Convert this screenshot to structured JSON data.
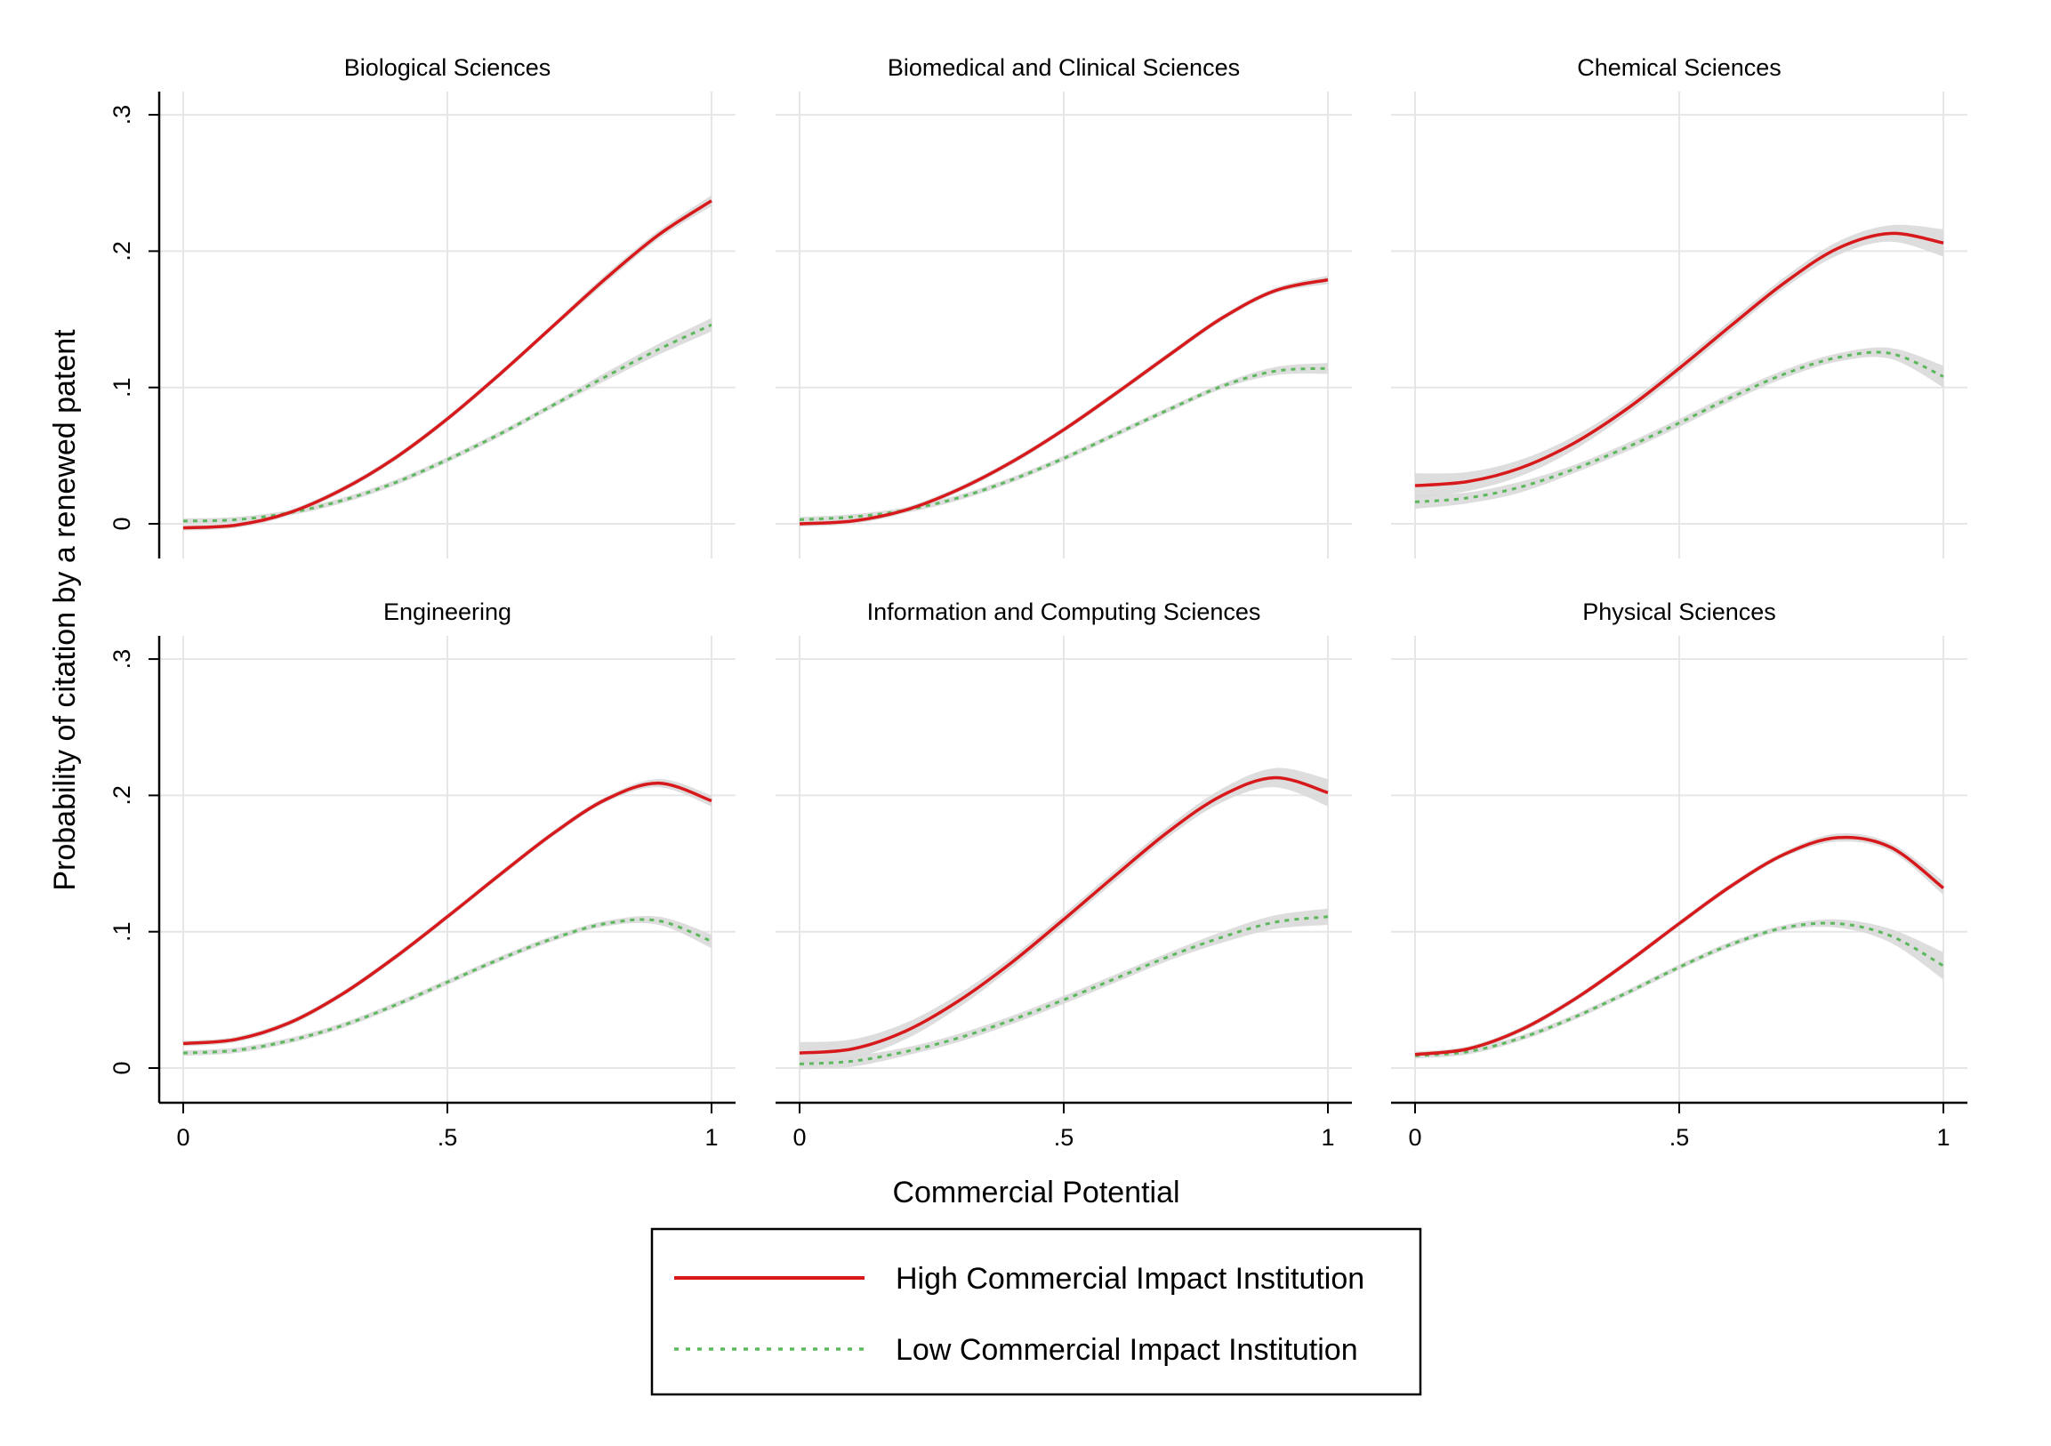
{
  "chart_data": {
    "type": "line",
    "x_axis_label": "Commercial Potential",
    "y_axis_label": "Probability of citation by a renewed patent",
    "xlim": [
      0,
      1
    ],
    "ylim": [
      -0.025,
      0.32
    ],
    "x_ticks": [
      {
        "value": 0,
        "label": "0"
      },
      {
        "value": 0.5,
        "label": ".5"
      },
      {
        "value": 1,
        "label": "1"
      }
    ],
    "y_ticks": [
      {
        "value": 0,
        "label": "0"
      },
      {
        "value": 0.1,
        "label": ".1"
      },
      {
        "value": 0.2,
        "label": ".2"
      },
      {
        "value": 0.3,
        "label": ".3"
      }
    ],
    "grid": true,
    "confidence_band_color": "#d9d9d9",
    "series_styles": [
      {
        "name": "High Commercial Impact Institution",
        "color": "#d7191c",
        "dash": "solid"
      },
      {
        "name": "Low Commercial Impact Institution",
        "color": "#5cb85c",
        "dash": "dotted"
      }
    ],
    "legend": {
      "position": "bottom-center",
      "entries": [
        "High Commercial Impact Institution",
        "Low Commercial Impact Institution"
      ]
    },
    "x": [
      0,
      0.1,
      0.2,
      0.3,
      0.4,
      0.5,
      0.6,
      0.7,
      0.8,
      0.9,
      1.0
    ],
    "panels": [
      {
        "title": "Biological Sciences",
        "series": [
          {
            "name": "High Commercial Impact Institution",
            "values": [
              -0.003,
              -0.001,
              0.008,
              0.025,
              0.048,
              0.077,
              0.11,
              0.145,
              0.18,
              0.212,
              0.237
            ],
            "ci": [
              0.002,
              0.002,
              0.002,
              0.002,
              0.002,
              0.002,
              0.002,
              0.002,
              0.003,
              0.003,
              0.004
            ]
          },
          {
            "name": "Low Commercial Impact Institution",
            "values": [
              0.002,
              0.003,
              0.008,
              0.017,
              0.03,
              0.047,
              0.066,
              0.087,
              0.108,
              0.128,
              0.146
            ],
            "ci": [
              0.002,
              0.002,
              0.002,
              0.002,
              0.002,
              0.002,
              0.002,
              0.002,
              0.003,
              0.004,
              0.005
            ]
          }
        ]
      },
      {
        "title": "Biomedical and Clinical Sciences",
        "series": [
          {
            "name": "High Commercial Impact Institution",
            "values": [
              0.0,
              0.002,
              0.01,
              0.025,
              0.045,
              0.069,
              0.096,
              0.124,
              0.151,
              0.171,
              0.179
            ],
            "ci": [
              0.002,
              0.002,
              0.002,
              0.002,
              0.002,
              0.002,
              0.002,
              0.002,
              0.002,
              0.002,
              0.003
            ]
          },
          {
            "name": "Low Commercial Impact Institution",
            "values": [
              0.003,
              0.005,
              0.01,
              0.019,
              0.032,
              0.048,
              0.066,
              0.084,
              0.101,
              0.112,
              0.114
            ],
            "ci": [
              0.002,
              0.002,
              0.002,
              0.002,
              0.002,
              0.002,
              0.002,
              0.002,
              0.002,
              0.003,
              0.004
            ]
          }
        ]
      },
      {
        "title": "Chemical Sciences",
        "series": [
          {
            "name": "High Commercial Impact Institution",
            "values": [
              0.028,
              0.031,
              0.041,
              0.059,
              0.084,
              0.114,
              0.146,
              0.177,
              0.202,
              0.213,
              0.206
            ],
            "ci": [
              0.009,
              0.007,
              0.006,
              0.005,
              0.004,
              0.004,
              0.004,
              0.004,
              0.005,
              0.006,
              0.01
            ]
          },
          {
            "name": "Low Commercial Impact Institution",
            "values": [
              0.016,
              0.019,
              0.027,
              0.04,
              0.056,
              0.074,
              0.093,
              0.11,
              0.122,
              0.125,
              0.108
            ],
            "ci": [
              0.005,
              0.004,
              0.004,
              0.003,
              0.003,
              0.003,
              0.003,
              0.003,
              0.003,
              0.004,
              0.008
            ]
          }
        ]
      },
      {
        "title": "Engineering",
        "series": [
          {
            "name": "High Commercial Impact Institution",
            "values": [
              0.018,
              0.021,
              0.033,
              0.054,
              0.081,
              0.111,
              0.142,
              0.172,
              0.197,
              0.209,
              0.196
            ],
            "ci": [
              0.002,
              0.002,
              0.002,
              0.002,
              0.002,
              0.002,
              0.002,
              0.002,
              0.002,
              0.003,
              0.004
            ]
          },
          {
            "name": "Low Commercial Impact Institution",
            "values": [
              0.011,
              0.013,
              0.02,
              0.031,
              0.046,
              0.063,
              0.08,
              0.095,
              0.106,
              0.108,
              0.093
            ],
            "ci": [
              0.002,
              0.002,
              0.002,
              0.002,
              0.002,
              0.002,
              0.002,
              0.002,
              0.002,
              0.003,
              0.005
            ]
          }
        ]
      },
      {
        "title": "Information and Computing Sciences",
        "series": [
          {
            "name": "High Commercial Impact Institution",
            "values": [
              0.011,
              0.014,
              0.027,
              0.049,
              0.077,
              0.109,
              0.142,
              0.174,
              0.2,
              0.213,
              0.202
            ],
            "ci": [
              0.008,
              0.007,
              0.006,
              0.005,
              0.004,
              0.004,
              0.004,
              0.004,
              0.005,
              0.007,
              0.01
            ]
          },
          {
            "name": "Low Commercial Impact Institution",
            "values": [
              0.003,
              0.005,
              0.012,
              0.022,
              0.035,
              0.05,
              0.066,
              0.082,
              0.096,
              0.107,
              0.111
            ],
            "ci": [
              0.004,
              0.004,
              0.003,
              0.003,
              0.003,
              0.003,
              0.003,
              0.003,
              0.004,
              0.005,
              0.006
            ]
          }
        ]
      },
      {
        "title": "Physical Sciences",
        "series": [
          {
            "name": "High Commercial Impact Institution",
            "values": [
              0.01,
              0.014,
              0.028,
              0.05,
              0.077,
              0.106,
              0.134,
              0.157,
              0.169,
              0.162,
              0.132
            ],
            "ci": [
              0.002,
              0.002,
              0.002,
              0.002,
              0.002,
              0.002,
              0.002,
              0.002,
              0.003,
              0.003,
              0.005
            ]
          },
          {
            "name": "Low Commercial Impact Institution",
            "values": [
              0.009,
              0.012,
              0.022,
              0.037,
              0.055,
              0.074,
              0.091,
              0.103,
              0.106,
              0.097,
              0.075
            ],
            "ci": [
              0.002,
              0.002,
              0.002,
              0.002,
              0.002,
              0.002,
              0.002,
              0.002,
              0.003,
              0.005,
              0.01
            ]
          }
        ]
      }
    ]
  }
}
